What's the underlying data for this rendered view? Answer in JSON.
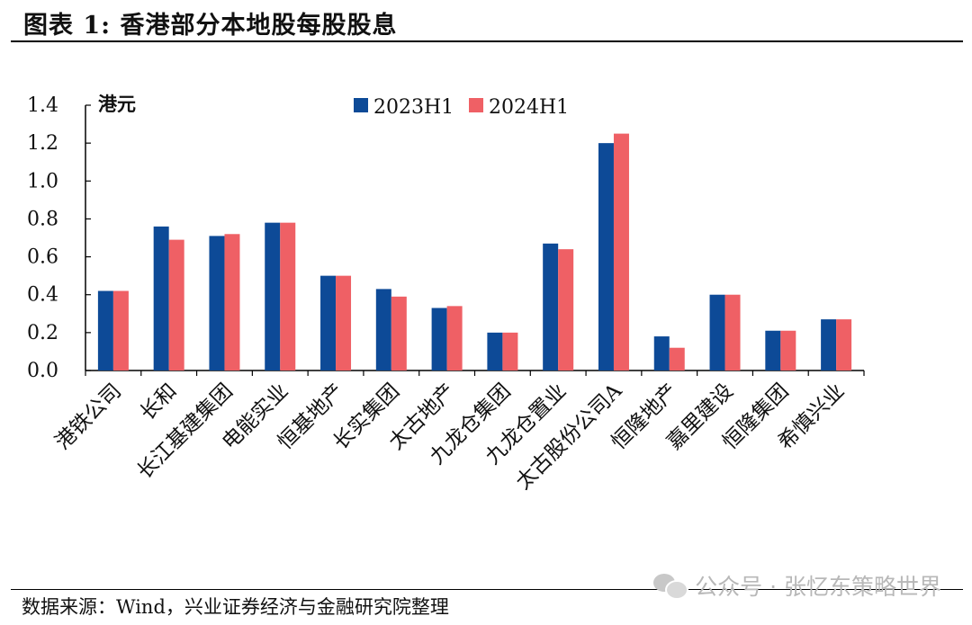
{
  "title": "图表 1:  香港部分本地股每股股息",
  "source": "数据来源：Wind，兴业证券经济与金融研究院整理",
  "watermark": "公众号 · 张忆东策略世界",
  "chart_data": {
    "type": "bar",
    "unit": "港元",
    "categories": [
      "港铁公司",
      "长和",
      "长江基建集团",
      "电能实业",
      "恒基地产",
      "长实集团",
      "太古地产",
      "九龙仓集团",
      "九龙仓置业",
      "太古股份公司A",
      "恒隆地产",
      "嘉里建设",
      "恒隆集团",
      "希慎兴业"
    ],
    "series": [
      {
        "name": "2023H1",
        "color": "#0d4a97",
        "values": [
          0.42,
          0.76,
          0.71,
          0.78,
          0.5,
          0.43,
          0.33,
          0.2,
          0.67,
          1.2,
          0.18,
          0.4,
          0.21,
          0.27
        ]
      },
      {
        "name": "2024H1",
        "color": "#ef6065",
        "values": [
          0.42,
          0.69,
          0.72,
          0.78,
          0.5,
          0.39,
          0.34,
          0.2,
          0.64,
          1.25,
          0.12,
          0.4,
          0.21,
          0.27
        ]
      }
    ],
    "ylim": [
      0,
      1.4
    ],
    "yticks": [
      "0.0",
      "0.2",
      "0.4",
      "0.6",
      "0.8",
      "1.0",
      "1.2",
      "1.4"
    ],
    "grid": false,
    "legend_position": "top"
  }
}
